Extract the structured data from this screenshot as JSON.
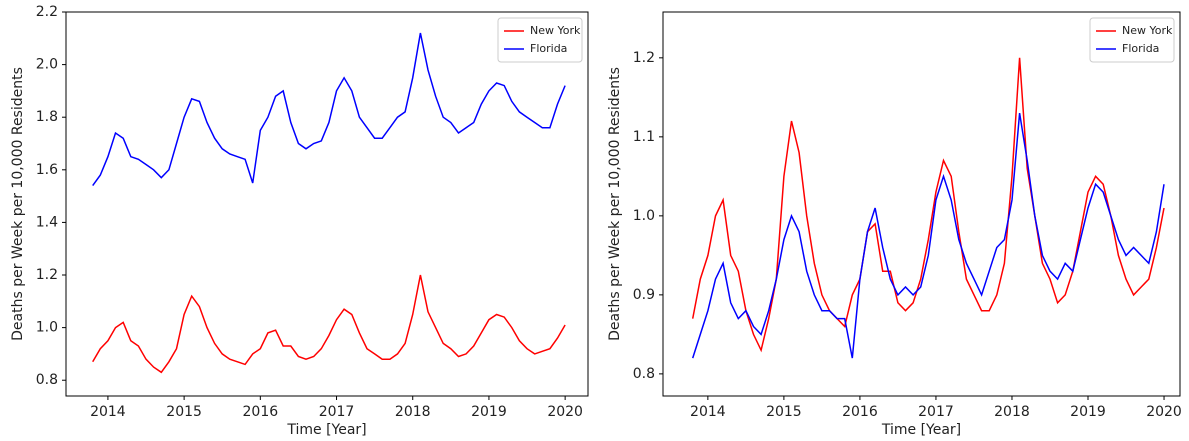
{
  "chart_data": [
    {
      "type": "line",
      "x_label": "Time [Year]",
      "y_label": "Deaths per Week per 10,000 Residents",
      "xlim": [
        2013.45,
        2020.3
      ],
      "ylim": [
        0.74,
        2.2
      ],
      "xticks": [
        2014,
        2015,
        2016,
        2017,
        2018,
        2019,
        2020
      ],
      "yticks": [
        {
          "value": 0.8,
          "label": "0.8"
        },
        {
          "value": 1.0,
          "label": "1.0"
        },
        1.2,
        1.4,
        1.6,
        1.8,
        {
          "value": 2.0,
          "label": "2.0"
        },
        2.2
      ],
      "legend": "upper right",
      "x": [
        2013.8,
        2013.9,
        2014.0,
        2014.1,
        2014.2,
        2014.3,
        2014.4,
        2014.5,
        2014.6,
        2014.7,
        2014.8,
        2014.9,
        2015.0,
        2015.1,
        2015.2,
        2015.3,
        2015.4,
        2015.5,
        2015.6,
        2015.7,
        2015.8,
        2015.9,
        2016.0,
        2016.1,
        2016.2,
        2016.3,
        2016.4,
        2016.5,
        2016.6,
        2016.7,
        2016.8,
        2016.9,
        2017.0,
        2017.1,
        2017.2,
        2017.3,
        2017.4,
        2017.5,
        2017.6,
        2017.7,
        2017.8,
        2017.9,
        2018.0,
        2018.1,
        2018.2,
        2018.3,
        2018.4,
        2018.5,
        2018.6,
        2018.7,
        2018.8,
        2018.9,
        2019.0,
        2019.1,
        2019.2,
        2019.3,
        2019.4,
        2019.5,
        2019.6,
        2019.7,
        2019.8,
        2019.9,
        2020.0
      ],
      "series": [
        {
          "name": "New York",
          "color": "#ff0000",
          "values": [
            0.87,
            0.92,
            0.95,
            1.0,
            1.02,
            0.95,
            0.93,
            0.88,
            0.85,
            0.83,
            0.87,
            0.92,
            1.05,
            1.12,
            1.08,
            1.0,
            0.94,
            0.9,
            0.88,
            0.87,
            0.86,
            0.9,
            0.92,
            0.98,
            0.99,
            0.93,
            0.93,
            0.89,
            0.88,
            0.89,
            0.92,
            0.97,
            1.03,
            1.07,
            1.05,
            0.98,
            0.92,
            0.9,
            0.88,
            0.88,
            0.9,
            0.94,
            1.05,
            1.2,
            1.06,
            1.0,
            0.94,
            0.92,
            0.89,
            0.9,
            0.93,
            0.98,
            1.03,
            1.05,
            1.04,
            1.0,
            0.95,
            0.92,
            0.9,
            0.91,
            0.92,
            0.96,
            1.01
          ]
        },
        {
          "name": "Florida",
          "color": "#0000ff",
          "values": [
            1.54,
            1.58,
            1.65,
            1.74,
            1.72,
            1.65,
            1.64,
            1.62,
            1.6,
            1.57,
            1.6,
            1.7,
            1.8,
            1.87,
            1.86,
            1.78,
            1.72,
            1.68,
            1.66,
            1.65,
            1.64,
            1.55,
            1.75,
            1.8,
            1.88,
            1.9,
            1.78,
            1.7,
            1.68,
            1.7,
            1.71,
            1.78,
            1.9,
            1.95,
            1.9,
            1.8,
            1.76,
            1.72,
            1.72,
            1.76,
            1.8,
            1.82,
            1.95,
            2.12,
            1.98,
            1.88,
            1.8,
            1.78,
            1.74,
            1.76,
            1.78,
            1.85,
            1.9,
            1.93,
            1.92,
            1.86,
            1.82,
            1.8,
            1.78,
            1.76,
            1.76,
            1.85,
            1.92
          ]
        }
      ]
    },
    {
      "type": "line",
      "x_label": "Time [Year]",
      "y_label": "Deaths per Week per 10,000 Residents",
      "xlim": [
        2013.41,
        2020.21
      ],
      "ylim": [
        0.772,
        1.258
      ],
      "xticks": [
        2014,
        2015,
        2016,
        2017,
        2018,
        2019,
        2020
      ],
      "yticks": [
        0.8,
        0.9,
        {
          "value": 1.0,
          "label": "1.0"
        },
        1.1,
        1.2
      ],
      "legend": "upper right",
      "x": [
        2013.8,
        2013.9,
        2014.0,
        2014.1,
        2014.2,
        2014.3,
        2014.4,
        2014.5,
        2014.6,
        2014.7,
        2014.8,
        2014.9,
        2015.0,
        2015.1,
        2015.2,
        2015.3,
        2015.4,
        2015.5,
        2015.6,
        2015.7,
        2015.8,
        2015.9,
        2016.0,
        2016.1,
        2016.2,
        2016.3,
        2016.4,
        2016.5,
        2016.6,
        2016.7,
        2016.8,
        2016.9,
        2017.0,
        2017.1,
        2017.2,
        2017.3,
        2017.4,
        2017.5,
        2017.6,
        2017.7,
        2017.8,
        2017.9,
        2018.0,
        2018.1,
        2018.2,
        2018.3,
        2018.4,
        2018.5,
        2018.6,
        2018.7,
        2018.8,
        2018.9,
        2019.0,
        2019.1,
        2019.2,
        2019.3,
        2019.4,
        2019.5,
        2019.6,
        2019.7,
        2019.8,
        2019.9,
        2020.0
      ],
      "series": [
        {
          "name": "New York",
          "color": "#ff0000",
          "values": [
            0.87,
            0.92,
            0.95,
            1.0,
            1.02,
            0.95,
            0.93,
            0.88,
            0.85,
            0.83,
            0.87,
            0.92,
            1.05,
            1.12,
            1.08,
            1.0,
            0.94,
            0.9,
            0.88,
            0.87,
            0.86,
            0.9,
            0.92,
            0.98,
            0.99,
            0.93,
            0.93,
            0.89,
            0.88,
            0.89,
            0.92,
            0.97,
            1.03,
            1.07,
            1.05,
            0.98,
            0.92,
            0.9,
            0.88,
            0.88,
            0.9,
            0.94,
            1.05,
            1.2,
            1.06,
            1.0,
            0.94,
            0.92,
            0.89,
            0.9,
            0.93,
            0.98,
            1.03,
            1.05,
            1.04,
            1.0,
            0.95,
            0.92,
            0.9,
            0.91,
            0.92,
            0.96,
            1.01
          ]
        },
        {
          "name": "Florida",
          "color": "#0000ff",
          "values": [
            0.82,
            0.85,
            0.88,
            0.92,
            0.94,
            0.89,
            0.87,
            0.88,
            0.86,
            0.85,
            0.88,
            0.92,
            0.97,
            1.0,
            0.98,
            0.93,
            0.9,
            0.88,
            0.88,
            0.87,
            0.87,
            0.82,
            0.92,
            0.98,
            1.01,
            0.96,
            0.92,
            0.9,
            0.91,
            0.9,
            0.91,
            0.95,
            1.02,
            1.05,
            1.02,
            0.97,
            0.94,
            0.92,
            0.9,
            0.93,
            0.96,
            0.97,
            1.02,
            1.13,
            1.07,
            1.0,
            0.95,
            0.93,
            0.92,
            0.94,
            0.93,
            0.97,
            1.01,
            1.04,
            1.03,
            1.0,
            0.97,
            0.95,
            0.96,
            0.95,
            0.94,
            0.98,
            1.04
          ]
        }
      ]
    }
  ]
}
